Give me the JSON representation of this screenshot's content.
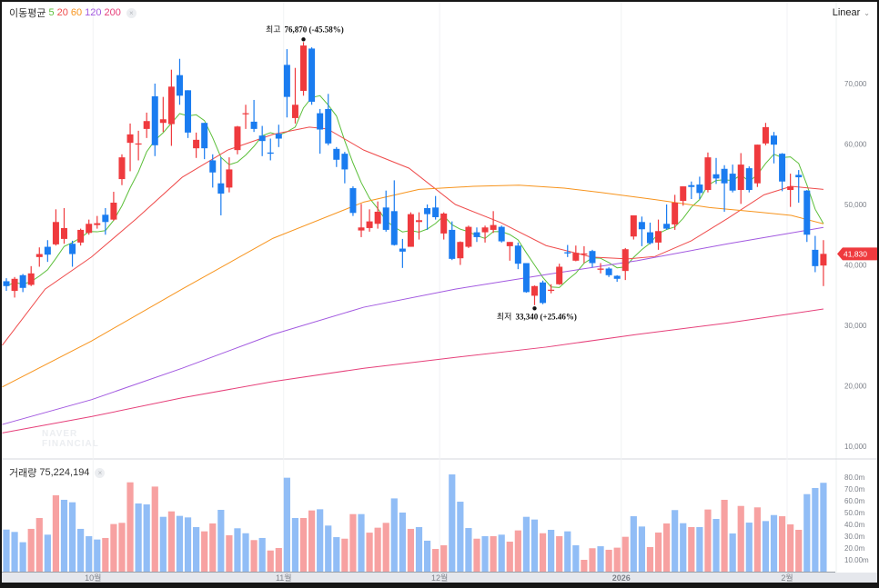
{
  "legend": {
    "ma_title": "이동평균",
    "ma_periods": [
      {
        "label": "5",
        "color": "#5cbf3a"
      },
      {
        "label": "20",
        "color": "#ef4b4b"
      },
      {
        "label": "60",
        "color": "#f7941d"
      },
      {
        "label": "120",
        "color": "#a259e0"
      },
      {
        "label": "200",
        "color": "#e6407a"
      }
    ],
    "close_glyph": "×",
    "volume_title": "거래량",
    "volume_value": "75,224,194"
  },
  "scale_mode": "Linear",
  "watermark": [
    "NAVER",
    "FINANCIAL"
  ],
  "colors": {
    "up": "#ef3a3e",
    "down": "#1a7cf0",
    "vol_up": "#f7a1a1",
    "vol_down": "#91bdf6"
  },
  "annotations": {
    "high": {
      "label": "최고",
      "value": "76,870 (-45.58%)",
      "index": 36,
      "price": 76870
    },
    "low": {
      "label": "최저",
      "value": "33,340 (+25.46%)",
      "index": 64,
      "price": 33340
    }
  },
  "last_price_tag": "41,830",
  "chart_data": {
    "type": "candlestick",
    "price_ylim": [
      10000,
      77000
    ],
    "price_ticks": [
      {
        "v": 10000,
        "label": "10,000"
      },
      {
        "v": 20000,
        "label": "20,000"
      },
      {
        "v": 30000,
        "label": "30,000"
      },
      {
        "v": 40000,
        "label": "40,000"
      },
      {
        "v": 50000,
        "label": "50,000"
      },
      {
        "v": 60000,
        "label": "60,000"
      },
      {
        "v": 70000,
        "label": "70,000"
      }
    ],
    "volume_ticks": [
      {
        "v": 10,
        "label": "10.00m"
      },
      {
        "v": 20,
        "label": "20.0m"
      },
      {
        "v": 30,
        "label": "30.0m"
      },
      {
        "v": 40,
        "label": "40.0m"
      },
      {
        "v": 50,
        "label": "50.0m"
      },
      {
        "v": 60,
        "label": "60.0m"
      },
      {
        "v": 70,
        "label": "70.0m"
      },
      {
        "v": 80,
        "label": "80.0m"
      }
    ],
    "x_labels": [
      {
        "index": 10.5,
        "label": "10월"
      },
      {
        "index": 33.6,
        "label": "11월"
      },
      {
        "index": 52.5,
        "label": "12월"
      },
      {
        "index": 74.5,
        "label": "2026"
      },
      {
        "index": 94.6,
        "label": "2월"
      }
    ],
    "ohlc": [
      [
        37300,
        37800,
        35700,
        36500
      ],
      [
        35700,
        38000,
        34600,
        37700
      ],
      [
        38300,
        38500,
        35500,
        36200
      ],
      [
        36700,
        39800,
        36500,
        38600
      ],
      [
        41300,
        42900,
        39700,
        41800
      ],
      [
        43000,
        44100,
        40500,
        41700
      ],
      [
        43400,
        49200,
        43200,
        47100
      ],
      [
        44300,
        49400,
        43500,
        46100
      ],
      [
        43500,
        44000,
        39700,
        41800
      ],
      [
        43700,
        46000,
        43200,
        45800
      ],
      [
        45300,
        47500,
        45000,
        46800
      ],
      [
        46600,
        48100,
        46000,
        46900
      ],
      [
        48300,
        49400,
        45000,
        47100
      ],
      [
        47500,
        52100,
        47300,
        50300
      ],
      [
        54200,
        58300,
        53200,
        57800
      ],
      [
        60200,
        63400,
        55500,
        61600
      ],
      [
        60000,
        62200,
        57300,
        60100
      ],
      [
        62500,
        65200,
        61000,
        63800
      ],
      [
        67900,
        70000,
        58000,
        59800
      ],
      [
        63500,
        67800,
        62000,
        64100
      ],
      [
        63300,
        72300,
        59700,
        69500
      ],
      [
        71400,
        74100,
        66500,
        68000
      ],
      [
        68900,
        68900,
        61000,
        61900
      ],
      [
        59300,
        61900,
        57700,
        60700
      ],
      [
        63500,
        63500,
        57500,
        59300
      ],
      [
        57300,
        58300,
        52800,
        55300
      ],
      [
        53500,
        57800,
        48200,
        51800
      ],
      [
        52800,
        57800,
        52000,
        55800
      ],
      [
        59000,
        63000,
        58300,
        62900
      ],
      [
        65000,
        66500,
        62500,
        65100
      ],
      [
        63700,
        67300,
        62000,
        62500
      ],
      [
        61400,
        63000,
        58000,
        60500
      ],
      [
        58600,
        60900,
        57300,
        58400
      ],
      [
        61700,
        63200,
        59500,
        60900
      ],
      [
        73100,
        75700,
        64400,
        67800
      ],
      [
        64300,
        72600,
        63400,
        66500
      ],
      [
        68800,
        76870,
        68000,
        76300
      ],
      [
        75800,
        76000,
        66500,
        67000
      ],
      [
        65100,
        65800,
        58400,
        62400
      ],
      [
        65800,
        68300,
        59800,
        60100
      ],
      [
        59200,
        59500,
        56200,
        57400
      ],
      [
        58400,
        58700,
        53500,
        55800
      ],
      [
        52700,
        53000,
        48100,
        48600
      ],
      [
        45700,
        50100,
        44600,
        46200
      ],
      [
        46100,
        49200,
        45500,
        47200
      ],
      [
        46800,
        50500,
        46000,
        48800
      ],
      [
        49500,
        52300,
        45500,
        45800
      ],
      [
        48900,
        54000,
        43200,
        43300
      ],
      [
        42700,
        44300,
        39500,
        42200
      ],
      [
        43000,
        48700,
        43000,
        48400
      ],
      [
        47100,
        48700,
        44200,
        47400
      ],
      [
        49400,
        50000,
        45800,
        48400
      ],
      [
        49500,
        51400,
        47500,
        47900
      ],
      [
        45200,
        48700,
        44200,
        48500
      ],
      [
        45800,
        47200,
        40800,
        41000
      ],
      [
        41100,
        43900,
        40000,
        43800
      ],
      [
        43000,
        46500,
        42800,
        46300
      ],
      [
        45400,
        46200,
        43800,
        44600
      ],
      [
        45400,
        46500,
        43700,
        46200
      ],
      [
        45800,
        48900,
        45300,
        46600
      ],
      [
        46300,
        46500,
        43700,
        43900
      ],
      [
        43100,
        43800,
        40700,
        43800
      ],
      [
        43200,
        43700,
        39300,
        40200
      ],
      [
        40300,
        40300,
        35400,
        35500
      ],
      [
        34900,
        36600,
        33340,
        36500
      ],
      [
        37100,
        37400,
        33500,
        33700
      ],
      [
        35700,
        36800,
        35300,
        35900
      ],
      [
        36800,
        40200,
        36700,
        39700
      ],
      [
        42100,
        43300,
        41300,
        41900
      ],
      [
        40700,
        43200,
        40600,
        42000
      ],
      [
        41700,
        43100,
        40300,
        41900
      ],
      [
        42300,
        42500,
        39600,
        40300
      ],
      [
        39200,
        40300,
        38600,
        39400
      ],
      [
        39400,
        39600,
        38000,
        38300
      ],
      [
        38200,
        38300,
        37200,
        37700
      ],
      [
        39000,
        42800,
        37500,
        42600
      ],
      [
        44700,
        48200,
        44200,
        48200
      ],
      [
        47100,
        48000,
        43100,
        45900
      ],
      [
        45400,
        47000,
        43400,
        43600
      ],
      [
        43700,
        47500,
        42500,
        45600
      ],
      [
        46800,
        50000,
        45800,
        46000
      ],
      [
        46700,
        51600,
        45800,
        50300
      ],
      [
        50600,
        53000,
        49800,
        53000
      ],
      [
        53200,
        53800,
        50900,
        52900
      ],
      [
        53300,
        54600,
        50900,
        51900
      ],
      [
        52400,
        58600,
        52000,
        57800
      ],
      [
        55000,
        57700,
        53400,
        54300
      ],
      [
        55900,
        56500,
        48800,
        53500
      ],
      [
        55100,
        56600,
        52000,
        52300
      ],
      [
        52400,
        58500,
        50100,
        56600
      ],
      [
        56000,
        56300,
        52000,
        52400
      ],
      [
        53500,
        59900,
        52900,
        59900
      ],
      [
        60100,
        63500,
        59800,
        62800
      ],
      [
        61400,
        62000,
        56800,
        59900
      ],
      [
        58400,
        58500,
        52200,
        53800
      ],
      [
        52400,
        55100,
        49600,
        53000
      ],
      [
        54900,
        55700,
        50300,
        54500
      ],
      [
        52300,
        52400,
        43800,
        45000
      ],
      [
        42500,
        44800,
        38800,
        39800
      ],
      [
        39900,
        44100,
        36500,
        41830
      ]
    ],
    "volume_millions": [
      35.6,
      33.6,
      24.9,
      36.2,
      45.4,
      31.3,
      64.6,
      60.8,
      58.7,
      36.2,
      30,
      27.2,
      28.5,
      40.3,
      41.3,
      75.6,
      57.7,
      56.9,
      72,
      46.4,
      51,
      47.2,
      45.9,
      37.7,
      34.1,
      40.8,
      52.3,
      30.8,
      36.7,
      32.5,
      26.7,
      28.5,
      17.9,
      20,
      79.5,
      45.4,
      45.4,
      51.8,
      52.8,
      39,
      29.2,
      27.9,
      48.7,
      48.7,
      33,
      37.2,
      41.3,
      62,
      50,
      36.2,
      37.7,
      26.2,
      19.2,
      22.3,
      82.3,
      59.2,
      36.9,
      27.9,
      30,
      30,
      31.3,
      25.4,
      34.9,
      46.4,
      44.1,
      32.5,
      35.4,
      30,
      34.1,
      22.3,
      10,
      19.8,
      21.5,
      18.5,
      20.3,
      29.5,
      46.9,
      38.2,
      20.8,
      33.1,
      40.8,
      52.1,
      41,
      37.7,
      37.7,
      52.6,
      44.6,
      60.8,
      32.3,
      55.6,
      41.5,
      54.4,
      42.8,
      47.9,
      46.9,
      40,
      35.4,
      65.6,
      70.8,
      75.2
    ],
    "volume_direction": "dddUUdUddddd UUUUddUdUdddUUdUddUdUUddUUdddUU dUUUddUddUUdddUdUdUUddUdUdd UUdUUUddUUUddUdUdUdUdUddUUU",
    "moving_averages": [
      {
        "period": 20,
        "points": [
          [
            -0.5,
            26700
          ],
          [
            4.7,
            36000
          ],
          [
            10.3,
            41300
          ],
          [
            15.8,
            47700
          ],
          [
            21.3,
            54500
          ],
          [
            26.8,
            59000
          ],
          [
            32.3,
            61600
          ],
          [
            36.7,
            62800
          ],
          [
            38.9,
            62500
          ],
          [
            43.3,
            59000
          ],
          [
            48.8,
            56000
          ],
          [
            54.4,
            50000
          ],
          [
            59.9,
            47000
          ],
          [
            65.4,
            43200
          ],
          [
            70.9,
            41300
          ],
          [
            75.3,
            41000
          ],
          [
            78.6,
            41400
          ],
          [
            83,
            44000
          ],
          [
            87.4,
            47700
          ],
          [
            91.8,
            51600
          ],
          [
            95.1,
            53000
          ],
          [
            99,
            52500
          ]
        ]
      },
      {
        "period": 60,
        "points": [
          [
            -0.5,
            19800
          ],
          [
            10.3,
            27400
          ],
          [
            21.3,
            36000
          ],
          [
            32.3,
            44400
          ],
          [
            43.3,
            50400
          ],
          [
            50,
            52500
          ],
          [
            56.6,
            53000
          ],
          [
            62.1,
            53200
          ],
          [
            67.6,
            52700
          ],
          [
            72,
            52000
          ],
          [
            78.6,
            50800
          ],
          [
            85.2,
            49500
          ],
          [
            90.7,
            48800
          ],
          [
            95.1,
            48200
          ],
          [
            99,
            46800
          ]
        ]
      },
      {
        "period": 120,
        "points": [
          [
            -0.5,
            13600
          ],
          [
            10.3,
            17700
          ],
          [
            21.3,
            22900
          ],
          [
            32.3,
            28500
          ],
          [
            43.3,
            33000
          ],
          [
            54.4,
            36000
          ],
          [
            65.4,
            38400
          ],
          [
            76.4,
            40700
          ],
          [
            87.4,
            43500
          ],
          [
            99,
            46200
          ]
        ]
      },
      {
        "period": 200,
        "points": [
          [
            -0.5,
            12200
          ],
          [
            10.3,
            14900
          ],
          [
            21.3,
            18000
          ],
          [
            32.3,
            20700
          ],
          [
            43.3,
            22900
          ],
          [
            54.4,
            24700
          ],
          [
            65.4,
            26400
          ],
          [
            76.4,
            28500
          ],
          [
            87.4,
            30400
          ],
          [
            99,
            32700
          ]
        ]
      }
    ]
  }
}
